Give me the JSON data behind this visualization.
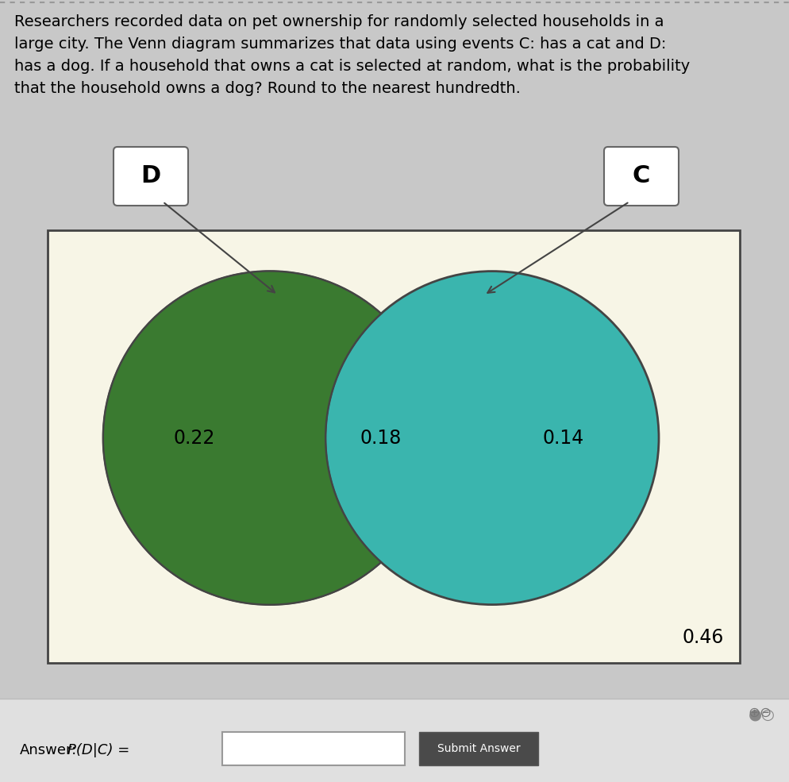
{
  "title_text": "Researchers recorded data on pet ownership for randomly selected households in a\nlarge city. The Venn diagram summarizes that data using events C: has a cat and D:\nhas a dog. If a household that owns a cat is selected at random, what is the probability\nthat the household owns a dog? Round to the nearest hundredth.",
  "background_color": "#c8c8c8",
  "venn_bg_color": "#f7f5e6",
  "venn_border_color": "#444444",
  "circle_D_color": "#d4d600",
  "circle_C_color": "#3ab5ae",
  "intersection_color": "#3a7a30",
  "value_D_only": "0.22",
  "value_intersection": "0.18",
  "value_C_only": "0.14",
  "value_outside": "0.46",
  "label_D": "D",
  "label_C": "C",
  "answer_text": "Answer:",
  "answer_pdc": "P(D|C) =",
  "submit_text": "Submit Answer",
  "answer_bg": "#e0e0e0",
  "text_color": "#000000",
  "box_bg": "#ffffff",
  "submit_bg": "#4a4a4a",
  "submit_text_color": "#ffffff",
  "arrow_color": "#444444",
  "fontsize_main": 14,
  "fontsize_values": 17,
  "fontsize_labels": 22,
  "fontsize_outside": 17,
  "fontsize_answer": 13
}
